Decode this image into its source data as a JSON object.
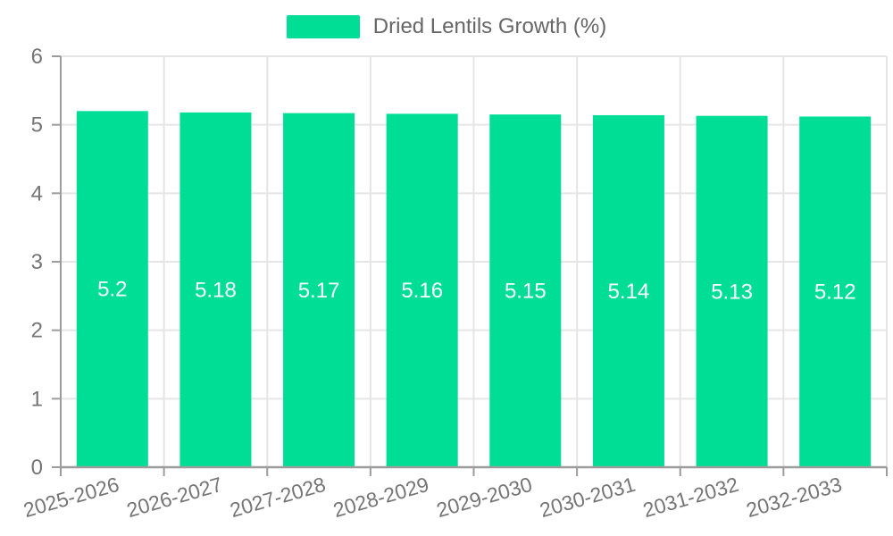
{
  "chart_data": {
    "type": "bar",
    "title": "Dried Lentils Growth (%)",
    "legend": {
      "position": "top",
      "label": "Dried Lentils Growth (%)"
    },
    "categories": [
      "2025-2026",
      "2026-2027",
      "2027-2028",
      "2028-2029",
      "2029-2030",
      "2030-2031",
      "2031-2032",
      "2032-2033"
    ],
    "values": [
      5.2,
      5.18,
      5.17,
      5.16,
      5.15,
      5.14,
      5.13,
      5.12
    ],
    "value_labels": [
      "5.2",
      "5.18",
      "5.17",
      "5.16",
      "5.15",
      "5.14",
      "5.13",
      "5.12"
    ],
    "xlabel": "",
    "ylabel": "",
    "ylim": [
      0,
      6
    ],
    "yticks": [
      0,
      1,
      2,
      3,
      4,
      5,
      6
    ],
    "grid": true,
    "x_label_rotation_deg": -16,
    "colors": {
      "bar": "#00DE96",
      "grid": "#E5E5E5",
      "axis": "#9C9C9C",
      "tick_label": "#757575",
      "legend_text": "#666666",
      "value_label": "#FFFFFF",
      "background": "#FFFFFF"
    }
  }
}
